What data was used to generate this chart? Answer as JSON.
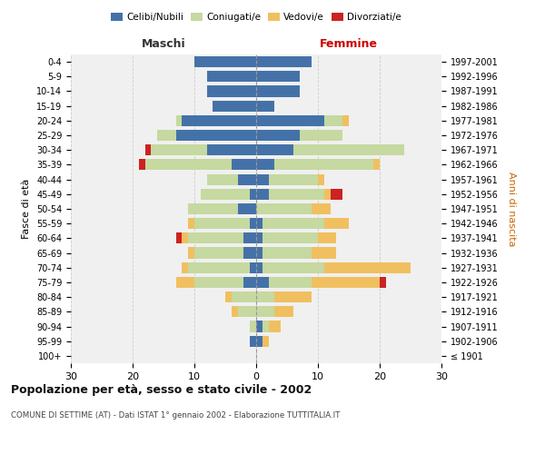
{
  "age_groups": [
    "100+",
    "95-99",
    "90-94",
    "85-89",
    "80-84",
    "75-79",
    "70-74",
    "65-69",
    "60-64",
    "55-59",
    "50-54",
    "45-49",
    "40-44",
    "35-39",
    "30-34",
    "25-29",
    "20-24",
    "15-19",
    "10-14",
    "5-9",
    "0-4"
  ],
  "birth_years": [
    "≤ 1901",
    "1902-1906",
    "1907-1911",
    "1912-1916",
    "1917-1921",
    "1922-1926",
    "1927-1931",
    "1932-1936",
    "1937-1941",
    "1942-1946",
    "1947-1951",
    "1952-1956",
    "1957-1961",
    "1962-1966",
    "1967-1971",
    "1972-1976",
    "1977-1981",
    "1982-1986",
    "1987-1991",
    "1992-1996",
    "1997-2001"
  ],
  "maschi": {
    "celibi": [
      0,
      1,
      0,
      0,
      0,
      2,
      1,
      2,
      2,
      1,
      3,
      1,
      3,
      4,
      8,
      13,
      12,
      7,
      8,
      8,
      10
    ],
    "coniugati": [
      0,
      0,
      1,
      3,
      4,
      8,
      10,
      8,
      9,
      9,
      8,
      8,
      5,
      14,
      9,
      3,
      1,
      0,
      0,
      0,
      0
    ],
    "vedovi": [
      0,
      0,
      0,
      1,
      1,
      3,
      1,
      1,
      1,
      1,
      0,
      0,
      0,
      0,
      0,
      0,
      0,
      0,
      0,
      0,
      0
    ],
    "divorziati": [
      0,
      0,
      0,
      0,
      0,
      0,
      0,
      0,
      1,
      0,
      0,
      0,
      0,
      1,
      1,
      0,
      0,
      0,
      0,
      0,
      0
    ]
  },
  "femmine": {
    "nubili": [
      0,
      1,
      1,
      0,
      0,
      2,
      1,
      1,
      1,
      1,
      0,
      2,
      2,
      3,
      6,
      7,
      11,
      3,
      7,
      7,
      9
    ],
    "coniugate": [
      0,
      0,
      1,
      3,
      3,
      7,
      10,
      8,
      9,
      10,
      9,
      9,
      8,
      16,
      18,
      7,
      3,
      0,
      0,
      0,
      0
    ],
    "vedove": [
      0,
      1,
      2,
      3,
      6,
      11,
      14,
      4,
      3,
      4,
      3,
      1,
      1,
      1,
      0,
      0,
      1,
      0,
      0,
      0,
      0
    ],
    "divorziate": [
      0,
      0,
      0,
      0,
      0,
      1,
      0,
      0,
      0,
      0,
      0,
      2,
      0,
      0,
      0,
      0,
      0,
      0,
      0,
      0,
      0
    ]
  },
  "colors": {
    "celibi_nubili": "#4472a8",
    "coniugati": "#c5d9a0",
    "vedovi": "#f0c060",
    "divorziati": "#cc2222"
  },
  "xlim": 30,
  "title": "Popolazione per età, sesso e stato civile - 2002",
  "subtitle": "COMUNE DI SETTIME (AT) - Dati ISTAT 1° gennaio 2002 - Elaborazione TUTTITALIA.IT",
  "ylabel_left": "Fasce di età",
  "ylabel_right": "Anni di nascita",
  "xlabel_left": "Maschi",
  "xlabel_right": "Femmine",
  "bg_color": "#f0f0f0",
  "grid_color": "#cccccc"
}
